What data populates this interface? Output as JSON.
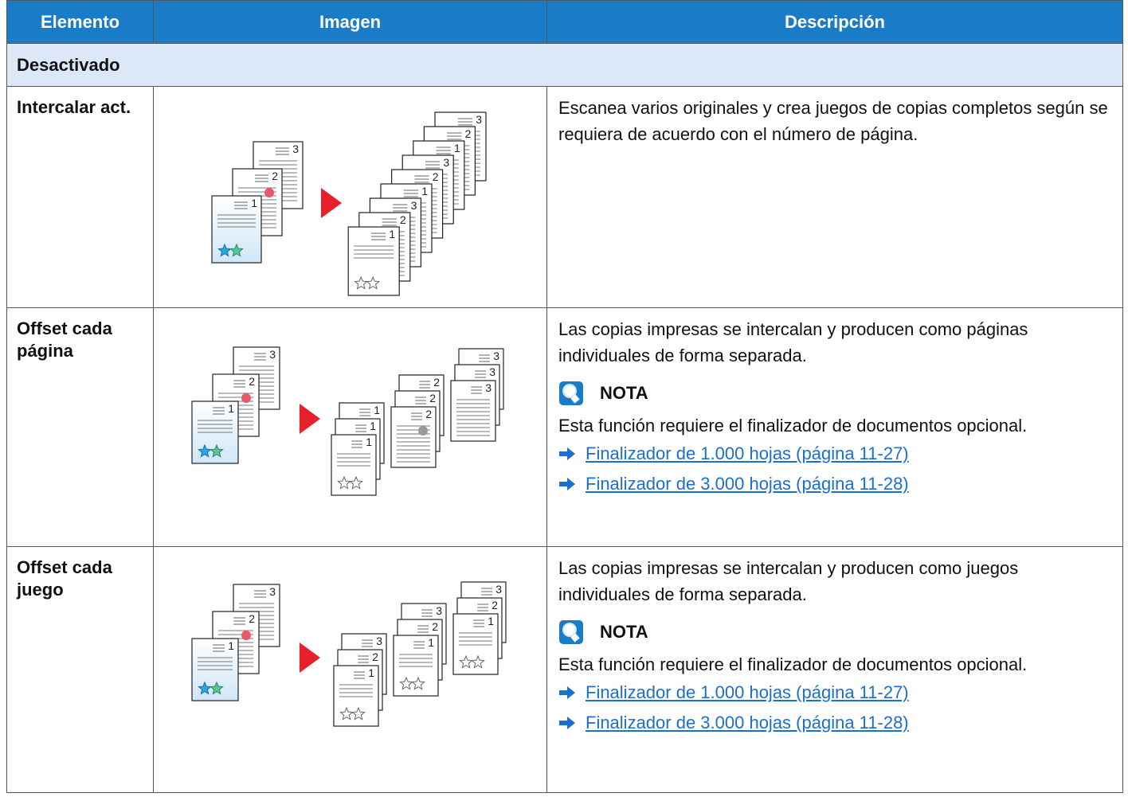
{
  "table": {
    "headers": [
      "Elemento",
      "Imagen",
      "Descripción"
    ],
    "section": "Desactivado",
    "rows": [
      {
        "item": "Intercalar act.",
        "description": "Escanea varios originales y crea juegos de copias completos según se requiera de acuerdo con el número de página."
      },
      {
        "item": "Offset cada página",
        "description": "Las copias impresas se intercalan y producen como páginas individuales de forma separada.",
        "note": {
          "title": "NOTA",
          "text": "Esta función requiere el finalizador de documentos opcional.",
          "links": [
            "Finalizador de 1.000 hojas (página 11-27)",
            "Finalizador de 3.000 hojas (página 11-28)"
          ]
        }
      },
      {
        "item": "Offset cada juego",
        "description": "Las copias impresas se intercalan y producen como juegos individuales de forma separada.",
        "note": {
          "title": "NOTA",
          "text": "Esta función requiere el finalizador de documentos opcional.",
          "links": [
            "Finalizador de 1.000 hojas (página 11-27)",
            "Finalizador de 3.000 hojas (página 11-28)"
          ]
        }
      }
    ]
  },
  "illustration_page_numbers": [
    "1",
    "2",
    "3"
  ]
}
